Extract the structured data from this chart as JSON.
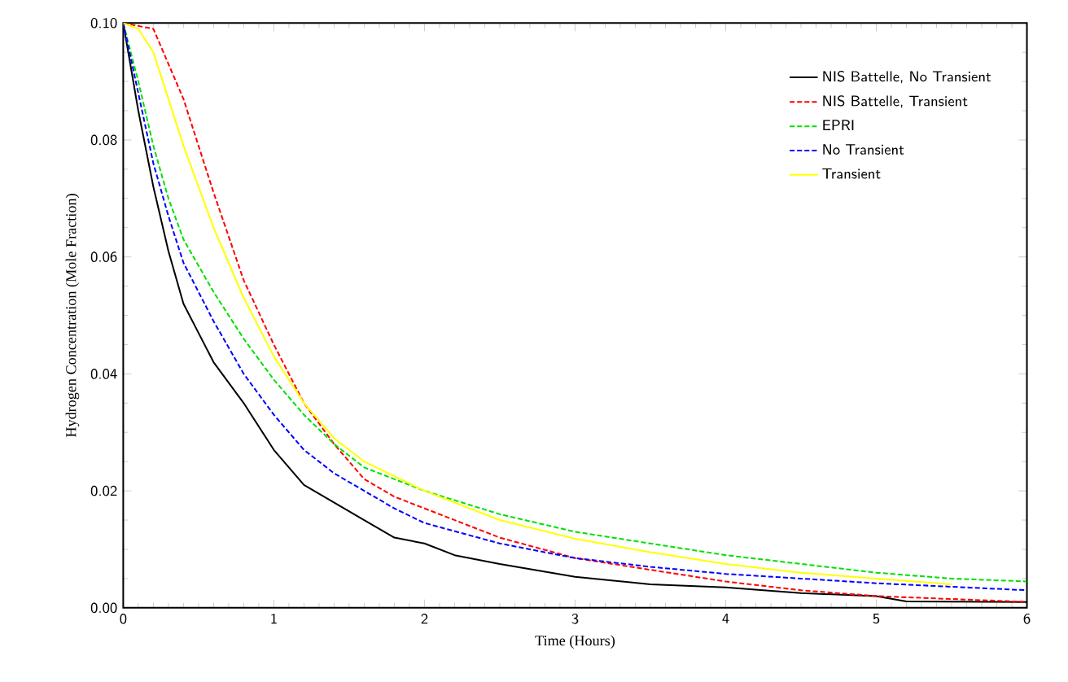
{
  "chart_data": {
    "type": "line",
    "xlabel": "Time (Hours)",
    "ylabel": "Hydrogen Concentration (Mole Fraction)",
    "xlim": [
      0,
      6
    ],
    "ylim": [
      0,
      0.1
    ],
    "xticks": [
      0,
      1,
      2,
      3,
      4,
      5,
      6
    ],
    "yticks": [
      {
        "value": 0,
        "label": "0.00"
      },
      {
        "value": 0.02,
        "label": "0.02"
      },
      {
        "value": 0.04,
        "label": "0.04"
      },
      {
        "value": 0.06,
        "label": "0.06"
      },
      {
        "value": 0.08,
        "label": "0.08"
      },
      {
        "value": 0.1,
        "label": "0.10"
      }
    ],
    "grid": false,
    "legend": "top right",
    "marker": "none",
    "series": [
      {
        "name": "NIS Battelle, No Transient",
        "color": "#000000",
        "line_style": "solid",
        "x": [
          0,
          0.1,
          0.2,
          0.3,
          0.4,
          0.5,
          0.6,
          0.8,
          1,
          1.2,
          1.4,
          1.6,
          1.8,
          2,
          2.2,
          2.5,
          3,
          3.5,
          4,
          4.5,
          5,
          5.2,
          6
        ],
        "values": [
          0.1,
          0.085,
          0.072,
          0.061,
          0.052,
          0.047,
          0.042,
          0.035,
          0.027,
          0.021,
          0.018,
          0.015,
          0.012,
          0.011,
          0.009,
          0.0075,
          0.0053,
          0.004,
          0.0035,
          0.0025,
          0.002,
          0.0011,
          0.001
        ]
      },
      {
        "name": "NIS Battelle, Transient",
        "color": "#ff0000",
        "line_style": "dashed",
        "x": [
          0,
          0.2,
          0.3,
          0.4,
          0.5,
          0.6,
          0.8,
          1,
          1.2,
          1.4,
          1.6,
          1.8,
          2,
          2.5,
          3,
          3.5,
          4,
          4.5,
          5,
          6
        ],
        "values": [
          0.1,
          0.099,
          0.093,
          0.087,
          0.079,
          0.071,
          0.056,
          0.045,
          0.035,
          0.028,
          0.022,
          0.019,
          0.017,
          0.012,
          0.0085,
          0.0065,
          0.0045,
          0.003,
          0.002,
          0.001
        ]
      },
      {
        "name": "EPRI",
        "color": "#00e000",
        "line_style": "dashed",
        "x": [
          0,
          0.1,
          0.2,
          0.3,
          0.4,
          0.6,
          0.8,
          1,
          1.2,
          1.4,
          1.6,
          2,
          2.5,
          3,
          3.5,
          4,
          4.5,
          5,
          5.5,
          6
        ],
        "values": [
          0.1,
          0.09,
          0.079,
          0.07,
          0.063,
          0.054,
          0.046,
          0.039,
          0.033,
          0.028,
          0.024,
          0.02,
          0.016,
          0.013,
          0.011,
          0.009,
          0.0075,
          0.006,
          0.005,
          0.0045
        ]
      },
      {
        "name": "No Transient",
        "color": "#0000ff",
        "line_style": "dashed",
        "x": [
          0,
          0.1,
          0.2,
          0.3,
          0.4,
          0.6,
          0.8,
          1,
          1.2,
          1.4,
          1.6,
          1.8,
          2,
          2.5,
          3,
          3.5,
          4,
          4.5,
          5,
          5.5,
          6
        ],
        "values": [
          0.1,
          0.088,
          0.076,
          0.067,
          0.059,
          0.049,
          0.04,
          0.033,
          0.027,
          0.023,
          0.02,
          0.017,
          0.0145,
          0.011,
          0.0085,
          0.007,
          0.0058,
          0.005,
          0.0042,
          0.0036,
          0.003
        ]
      },
      {
        "name": "Transient",
        "color": "#ffff00",
        "line_style": "solid",
        "x": [
          0,
          0.1,
          0.2,
          0.3,
          0.4,
          0.6,
          0.8,
          1,
          1.2,
          1.4,
          1.6,
          2,
          2.5,
          3,
          3.5,
          4,
          4.5,
          5,
          5.5
        ],
        "values": [
          0.1,
          0.099,
          0.095,
          0.087,
          0.079,
          0.065,
          0.053,
          0.043,
          0.035,
          0.029,
          0.025,
          0.02,
          0.015,
          0.0118,
          0.0095,
          0.0075,
          0.006,
          0.005,
          0.004
        ]
      }
    ]
  }
}
